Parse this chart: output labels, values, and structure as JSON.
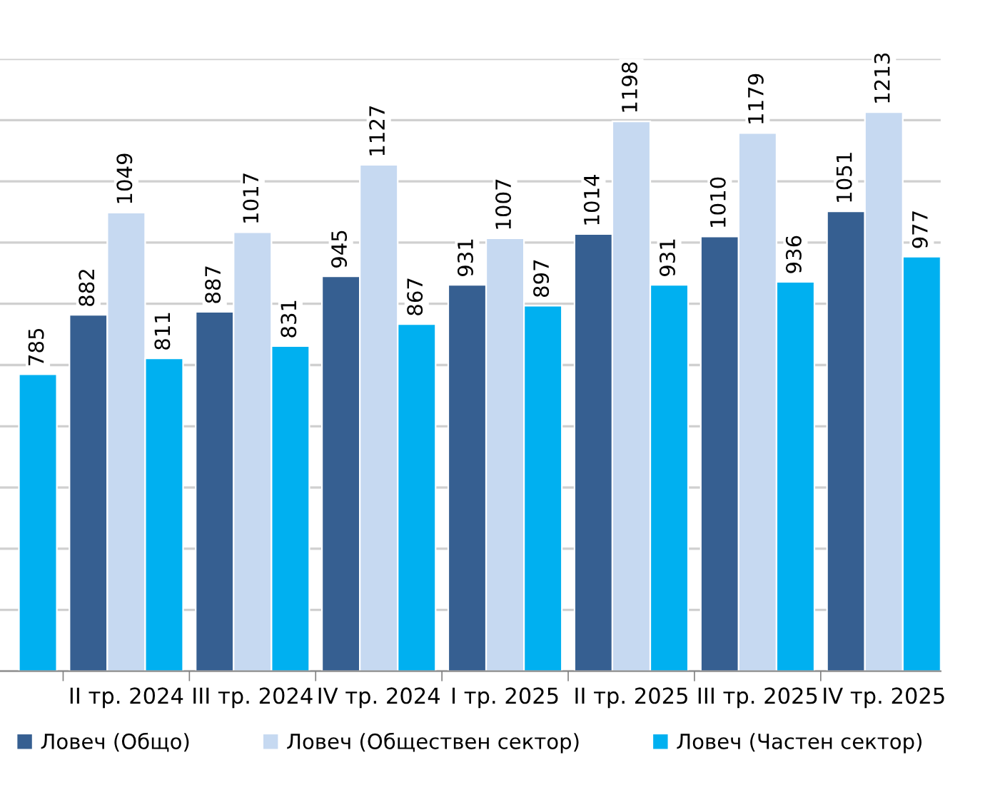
{
  "chart_data": {
    "type": "bar",
    "categories": [
      null,
      "II тр. 2024",
      "III тр. 2024",
      "IV тр. 2024",
      "I тр. 2025",
      "II тр. 2025",
      "III тр. 2025",
      "IV тр. 2025"
    ],
    "series": [
      {
        "name": "Ловеч (Общо)",
        "color": "#365f91",
        "values": [
          null,
          882,
          887,
          945,
          931,
          1014,
          1010,
          1051
        ]
      },
      {
        "name": "Ловеч (Обществен сектор)",
        "color": "#c6d9f1",
        "values": [
          null,
          1049,
          1017,
          1127,
          1007,
          1198,
          1179,
          1213
        ]
      },
      {
        "name": "Ловеч (Частен сектор)",
        "color": "#00b0f0",
        "values": [
          785,
          811,
          831,
          867,
          897,
          931,
          936,
          977
        ]
      }
    ],
    "ylim": [
      300,
      1300
    ],
    "yticks": [
      {
        "value": 300,
        "label": null
      },
      {
        "value": 400,
        "label": null
      },
      {
        "value": 500,
        "label": null
      },
      {
        "value": 600,
        "label": null
      },
      {
        "value": 700,
        "label": null
      },
      {
        "value": 800,
        "label": null
      },
      {
        "value": 900,
        "label": null
      },
      {
        "value": 1000,
        "label": null
      },
      {
        "value": 1100,
        "label": null
      },
      {
        "value": 1200,
        "label": null
      },
      {
        "value": 1300,
        "label": null
      }
    ],
    "tick_labels": "x",
    "grid": "y",
    "legend": "bottom",
    "data_labels": true
  }
}
